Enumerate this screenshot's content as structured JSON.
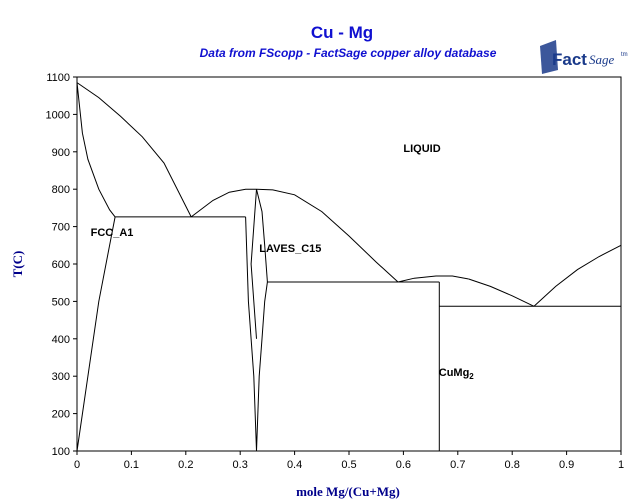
{
  "chart_data": {
    "type": "line",
    "title": "Cu - Mg",
    "subtitle": "Data from FScopp - FactSage copper alloy database",
    "xlabel": "mole Mg/(Cu+Mg)",
    "ylabel": "T(C)",
    "xlim": [
      0,
      1
    ],
    "ylim": [
      100,
      1100
    ],
    "x_ticks": [
      0,
      0.1,
      0.2,
      0.3,
      0.4,
      0.5,
      0.6,
      0.7,
      0.8,
      0.9,
      1
    ],
    "x_tick_labels": [
      "0",
      "0.1",
      "0.2",
      "0.3",
      "0.4",
      "0.5",
      "0.6",
      "0.7",
      "0.8",
      "0.9",
      "1"
    ],
    "y_ticks": [
      100,
      200,
      300,
      400,
      500,
      600,
      700,
      800,
      900,
      1000,
      1100
    ],
    "y_tick_labels": [
      "100",
      "200",
      "300",
      "400",
      "500",
      "600",
      "700",
      "800",
      "900",
      "1000",
      "1100"
    ],
    "grid": false,
    "series": [
      {
        "x": [
          0,
          0.04,
          0.08,
          0.12,
          0.16,
          0.21
        ],
        "y": [
          1085,
          1045,
          995,
          940,
          870,
          726
        ]
      },
      {
        "x": [
          0,
          0.01,
          0.02,
          0.04,
          0.06,
          0.07
        ],
        "y": [
          1085,
          950,
          880,
          800,
          745,
          726
        ]
      },
      {
        "x": [
          0,
          0.02,
          0.04,
          0.06,
          0.07
        ],
        "y": [
          100,
          300,
          500,
          650,
          726
        ]
      },
      {
        "x": [
          0.07,
          0.31
        ],
        "y": [
          726,
          726
        ]
      },
      {
        "x": [
          0.21,
          0.25,
          0.28,
          0.31,
          0.33
        ],
        "y": [
          726,
          770,
          792,
          800,
          800
        ]
      },
      {
        "x": [
          0.33,
          0.36,
          0.4,
          0.45,
          0.5,
          0.55,
          0.59
        ],
        "y": [
          800,
          798,
          785,
          740,
          675,
          605,
          552
        ]
      },
      {
        "x": [
          0.31,
          0.315,
          0.32,
          0.325,
          0.33
        ],
        "y": [
          726,
          500,
          400,
          300,
          100
        ]
      },
      {
        "x": [
          0.33,
          0.325,
          0.32,
          0.325,
          0.33
        ],
        "y": [
          800,
          700,
          600,
          500,
          400
        ]
      },
      {
        "x": [
          0.33,
          0.34,
          0.345,
          0.35
        ],
        "y": [
          800,
          740,
          650,
          552
        ]
      },
      {
        "x": [
          0.35,
          0.345,
          0.34,
          0.335,
          0.33
        ],
        "y": [
          552,
          500,
          400,
          300,
          100
        ]
      },
      {
        "x": [
          0.35,
          0.666
        ],
        "y": [
          552,
          552
        ]
      },
      {
        "x": [
          0.59,
          0.62,
          0.66,
          0.69,
          0.72
        ],
        "y": [
          552,
          562,
          568,
          568,
          560
        ]
      },
      {
        "x": [
          0.72,
          0.76,
          0.8,
          0.84
        ],
        "y": [
          560,
          540,
          515,
          487
        ]
      },
      {
        "x": [
          0.666,
          0.666
        ],
        "y": [
          552,
          100
        ]
      },
      {
        "x": [
          0.666,
          1
        ],
        "y": [
          487,
          487
        ]
      },
      {
        "x": [
          0.84,
          0.88,
          0.92,
          0.96,
          1
        ],
        "y": [
          487,
          540,
          585,
          620,
          650
        ]
      }
    ],
    "annotations": [
      {
        "text": "LIQUID",
        "x": 0.6,
        "y": 900
      },
      {
        "text": "FCC_A1",
        "x": 0.025,
        "y": 675
      },
      {
        "text": "LAVES_C15",
        "x": 0.335,
        "y": 632
      },
      {
        "text": "CuMg",
        "sub": "2",
        "x": 0.665,
        "y": 300
      }
    ]
  },
  "logo": {
    "brand": "Fact",
    "suffix": "Sage",
    "mark": "tm"
  }
}
